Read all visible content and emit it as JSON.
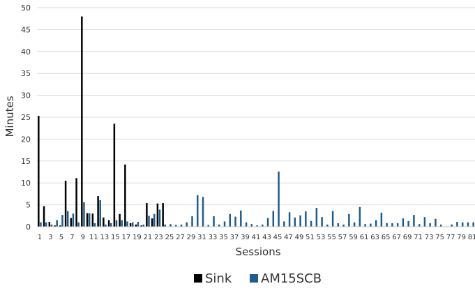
{
  "chart_data": {
    "type": "bar",
    "xlabel": "Sessions",
    "ylabel": "Minutes",
    "ylim": [
      0,
      50
    ],
    "yticks": [
      0,
      5,
      10,
      15,
      20,
      25,
      30,
      35,
      40,
      45,
      50
    ],
    "grid": true,
    "legend_position": "bottom",
    "categories": [
      "1",
      "2",
      "3",
      "4",
      "5",
      "6",
      "7",
      "8",
      "9",
      "10",
      "11",
      "12",
      "13",
      "14",
      "15",
      "16",
      "17",
      "18",
      "19",
      "20",
      "21",
      "22",
      "23",
      "24",
      "25",
      "26",
      "27",
      "28",
      "29",
      "30",
      "31",
      "32",
      "33",
      "34",
      "35",
      "36",
      "37",
      "38",
      "39",
      "40",
      "41",
      "42",
      "43",
      "44",
      "45",
      "46",
      "47",
      "48",
      "49",
      "50",
      "51",
      "52",
      "53",
      "54",
      "55",
      "56",
      "57",
      "58",
      "59",
      "60",
      "61",
      "62",
      "63",
      "64",
      "65",
      "66",
      "67",
      "68",
      "69",
      "70",
      "71",
      "72",
      "73",
      "74",
      "75",
      "76",
      "77",
      "78",
      "79",
      "80",
      "81"
    ],
    "x_tick_labels": [
      "1",
      "3",
      "5",
      "7",
      "9",
      "11",
      "13",
      "15",
      "17",
      "19",
      "21",
      "23",
      "25",
      "27",
      "29",
      "31",
      "33",
      "35",
      "37",
      "39",
      "41",
      "43",
      "45",
      "47",
      "49",
      "51",
      "53",
      "55",
      "57",
      "59",
      "61",
      "63",
      "65",
      "67",
      "69",
      "71",
      "73",
      "75",
      "77",
      "79",
      "81"
    ],
    "series": [
      {
        "name": "Sink",
        "color": "#000000",
        "values": [
          25.3,
          4.7,
          1.1,
          0.3,
          0.3,
          10.5,
          2.0,
          11.1,
          48.0,
          3.1,
          3.0,
          7.0,
          2.1,
          1.5,
          23.5,
          2.9,
          14.2,
          0.8,
          0.5,
          0.3,
          5.4,
          1.9,
          5.3,
          5.4,
          null,
          null,
          null,
          null,
          null,
          null,
          null,
          null,
          null,
          null,
          null,
          null,
          null,
          null,
          null,
          null,
          null,
          null,
          null,
          null,
          null,
          null,
          null,
          null,
          null,
          null,
          null,
          null,
          null,
          null,
          null,
          null,
          null,
          null,
          null,
          null,
          null,
          null,
          null,
          null,
          null,
          null,
          null,
          null,
          null,
          null,
          null,
          null,
          null,
          null,
          null,
          null,
          null,
          null,
          null,
          null,
          null
        ]
      },
      {
        "name": "AM15SCB",
        "color": "#1f5c8b",
        "values": [
          1.0,
          1.0,
          0.5,
          1.5,
          2.7,
          3.6,
          3.0,
          1.0,
          5.6,
          3.1,
          0.8,
          6.1,
          0.5,
          0.8,
          1.5,
          1.5,
          1.2,
          1.0,
          1.1,
          0.5,
          2.5,
          2.9,
          3.9,
          0.5,
          0.6,
          0.4,
          0.5,
          1.0,
          2.4,
          7.2,
          6.8,
          0.4,
          2.4,
          0.5,
          1.2,
          2.9,
          2.3,
          3.7,
          1.0,
          0.6,
          0.3,
          0.5,
          2.0,
          3.6,
          12.6,
          1.2,
          3.3,
          2.1,
          2.6,
          3.5,
          1.3,
          4.3,
          2.2,
          0.5,
          3.6,
          0.8,
          0.5,
          2.9,
          1.0,
          4.5,
          0.6,
          0.7,
          1.5,
          3.2,
          0.8,
          0.8,
          0.8,
          1.9,
          1.3,
          2.7,
          0.6,
          2.2,
          0.8,
          1.8,
          0.5,
          0.1,
          0.5,
          1.1,
          1.0,
          1.0,
          1.0
        ]
      }
    ]
  }
}
